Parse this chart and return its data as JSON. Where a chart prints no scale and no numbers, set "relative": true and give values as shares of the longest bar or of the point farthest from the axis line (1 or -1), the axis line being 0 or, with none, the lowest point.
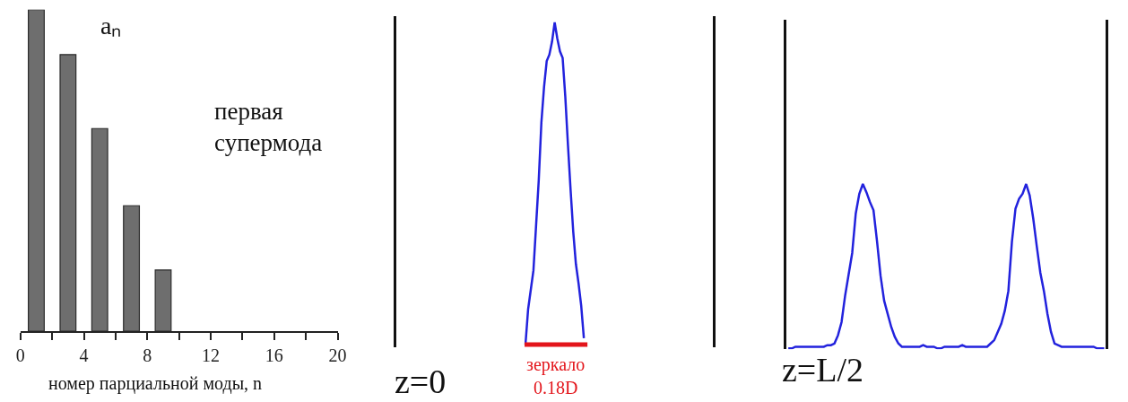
{
  "chart_data": [
    {
      "type": "bar",
      "relative": true,
      "ylabel": "aₙ",
      "xlabel": "номер парциальной моды, n",
      "x": [
        1,
        3,
        5,
        7,
        9
      ],
      "values": [
        1,
        0.86,
        0.63,
        0.39,
        0.19
      ],
      "color": "#6e6e6e",
      "xlim": [
        0,
        20
      ],
      "xticks": [
        0,
        {
          "value": 2,
          "label": null
        },
        4,
        {
          "value": 6,
          "label": null
        },
        8,
        {
          "value": 10,
          "label": null
        },
        12,
        {
          "value": 14,
          "label": null
        },
        16,
        {
          "value": 18,
          "label": null
        },
        20
      ],
      "annotations": [
        "первая супермода"
      ]
    },
    {
      "type": "line",
      "relative": true,
      "annotations": [
        "z=0",
        "зеркало 0.18D"
      ],
      "categories": [
        null,
        null,
        null,
        null,
        null,
        null,
        null,
        null,
        null,
        null,
        null,
        null,
        null,
        null,
        null,
        null,
        null,
        null,
        null,
        null,
        null,
        null,
        null
      ],
      "series": [
        {
          "color": "#2222dd",
          "values": [
            0.0,
            0.11,
            0.17,
            0.23,
            0.37,
            0.51,
            0.69,
            0.8,
            0.88,
            0.9,
            0.94,
            1.0,
            0.95,
            0.91,
            0.89,
            0.77,
            0.62,
            0.48,
            0.35,
            0.25,
            0.19,
            0.12,
            0.02
          ]
        }
      ]
    },
    {
      "type": "line",
      "relative": true,
      "annotations": [
        "z=L/2"
      ],
      "categories": [
        null,
        null,
        null,
        null,
        null,
        null,
        null,
        null,
        null,
        null,
        null,
        null,
        null,
        null,
        null,
        null,
        null,
        null,
        null,
        null,
        null,
        null,
        null,
        null,
        null,
        null,
        null,
        null,
        null,
        null,
        null,
        null,
        null,
        null,
        null,
        null,
        null,
        null,
        null,
        null,
        null,
        null,
        null,
        null,
        null,
        null,
        null,
        null,
        null,
        null,
        null,
        null,
        null,
        null,
        null,
        null,
        null,
        null,
        null,
        null,
        null,
        null,
        null,
        null,
        null,
        null,
        null,
        null,
        null,
        null,
        null,
        null,
        null,
        null,
        null,
        null,
        null,
        null,
        null,
        null,
        null,
        null,
        null,
        null,
        null,
        null,
        null,
        null,
        null,
        null
      ],
      "series": [
        {
          "color": "#2222dd",
          "values": [
            0.0,
            0.0,
            0.01,
            0.01,
            0.01,
            0.01,
            0.01,
            0.01,
            0.01,
            0.01,
            0.01,
            0.02,
            0.02,
            0.03,
            0.08,
            0.16,
            0.32,
            0.45,
            0.58,
            0.82,
            0.94,
            1.0,
            0.95,
            0.89,
            0.84,
            0.65,
            0.44,
            0.29,
            0.21,
            0.13,
            0.07,
            0.03,
            0.01,
            0.01,
            0.01,
            0.01,
            0.01,
            0.01,
            0.02,
            0.01,
            0.01,
            0.01,
            0.0,
            0.0,
            0.01,
            0.01,
            0.01,
            0.01,
            0.01,
            0.02,
            0.01,
            0.01,
            0.01,
            0.01,
            0.01,
            0.01,
            0.01,
            0.03,
            0.05,
            0.1,
            0.15,
            0.23,
            0.35,
            0.65,
            0.85,
            0.91,
            0.94,
            1.0,
            0.93,
            0.79,
            0.62,
            0.46,
            0.35,
            0.21,
            0.1,
            0.03,
            0.02,
            0.01,
            0.01,
            0.01,
            0.01,
            0.01,
            0.01,
            0.01,
            0.01,
            0.01,
            0.01,
            0.0,
            0.0,
            0.0
          ]
        }
      ]
    }
  ]
}
